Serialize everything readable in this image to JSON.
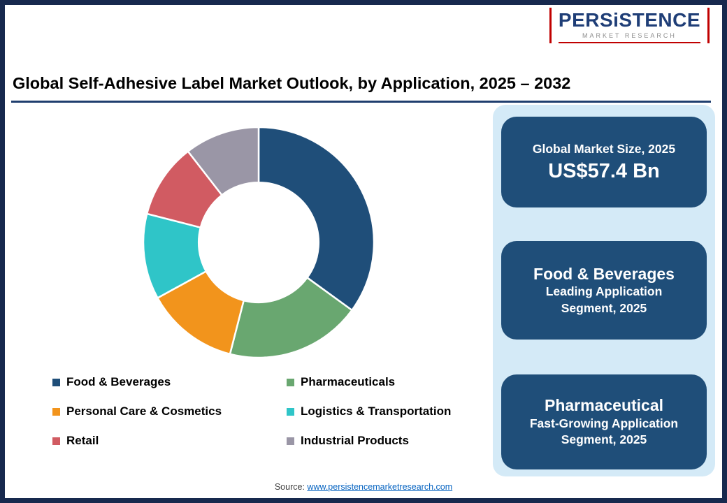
{
  "logo": {
    "word": "PERSiSTENCE",
    "tagline": "MARKET RESEARCH",
    "accent_color": "#C00000",
    "word_color": "#1F3E77"
  },
  "header": {
    "title": "Global Self-Adhesive Label Market Outlook, by Application, 2025 – 2032"
  },
  "chart_data": {
    "type": "pie",
    "variant": "donut",
    "categories": [
      "Food & Beverages",
      "Pharmaceuticals",
      "Personal Care & Cosmetics",
      "Logistics & Transportation",
      "Retail",
      "Industrial Products"
    ],
    "values": [
      35,
      19,
      13,
      12,
      10.5,
      10.5
    ],
    "values_unit": "% share, estimated from arc angles (no data labels shown in image)",
    "colors": [
      "#1F4E79",
      "#69A770",
      "#F2941C",
      "#2FC5C8",
      "#D15B62",
      "#9A96A6"
    ],
    "start_angle_deg": 0,
    "direction": "clockwise",
    "inner_radius_ratio": 0.52,
    "legend_position": "below-left",
    "title": ""
  },
  "sidebar": {
    "cards": [
      {
        "line1": "Global Market Size, 2025",
        "line2": "US$57.4 Bn"
      },
      {
        "line1": "Food & Beverages",
        "line2": "Leading Application Segment, 2025"
      },
      {
        "line1": "Pharmaceutical",
        "line2": "Fast-Growing Application Segment, 2025"
      }
    ],
    "panel_color": "#D4EAF7",
    "card_color": "#1F4E79"
  },
  "footer": {
    "source_label": "Source:",
    "source_link_text": "www.persistencemarketresearch.com"
  }
}
